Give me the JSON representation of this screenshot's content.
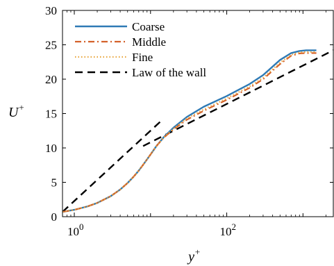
{
  "chart_data": {
    "type": "line",
    "x_scale": "log",
    "xlim": [
      0.7,
      2500
    ],
    "ylim": [
      0,
      30
    ],
    "x_ticks": [
      {
        "value": 1,
        "base": "10",
        "exp": "0"
      },
      {
        "value": 100,
        "base": "10",
        "exp": "2"
      }
    ],
    "y_ticks": [
      0,
      5,
      10,
      15,
      20,
      25,
      30
    ],
    "xlabel": "y",
    "xlabel_sup": "+",
    "ylabel": "U",
    "ylabel_sup": "+",
    "legend_position": "top-left",
    "series": [
      {
        "name": "Coarse",
        "color": "#2e7ab5",
        "style": "solid",
        "x": [
          0.7,
          1,
          1.5,
          2,
          3,
          4,
          5,
          6,
          7,
          8,
          10,
          12,
          15,
          20,
          30,
          50,
          100,
          200,
          300,
          500,
          700,
          900,
          1100,
          1500
        ],
        "y": [
          0.7,
          1.0,
          1.5,
          2.0,
          2.98,
          3.95,
          4.9,
          5.82,
          6.7,
          7.55,
          9.05,
          10.3,
          11.6,
          12.95,
          14.5,
          16.0,
          17.55,
          19.3,
          20.6,
          22.8,
          23.8,
          24.1,
          24.2,
          24.2
        ]
      },
      {
        "name": "Middle",
        "color": "#d4612a",
        "style": "dashdot",
        "x": [
          0.7,
          1,
          1.5,
          2,
          3,
          4,
          5,
          6,
          7,
          8,
          10,
          12,
          15,
          20,
          30,
          50,
          100,
          200,
          300,
          500,
          700,
          900,
          1100,
          1500
        ],
        "y": [
          0.7,
          1.0,
          1.5,
          2.0,
          2.98,
          3.95,
          4.9,
          5.82,
          6.7,
          7.55,
          9.05,
          10.3,
          11.5,
          12.7,
          14.1,
          15.4,
          17.0,
          18.75,
          20.0,
          22.2,
          23.4,
          23.75,
          23.8,
          23.8
        ]
      },
      {
        "name": "Fine",
        "color": "#e8a63e",
        "style": "dotted",
        "x": [
          0.7,
          1,
          1.5,
          2,
          3,
          4,
          5,
          6,
          7,
          8,
          10,
          12,
          15,
          20,
          30,
          50,
          100,
          200,
          300,
          500,
          700,
          900,
          1100,
          1500
        ],
        "y": [
          0.7,
          1.0,
          1.5,
          2.0,
          2.98,
          3.95,
          4.9,
          5.82,
          6.7,
          7.55,
          9.05,
          10.3,
          11.55,
          12.8,
          14.3,
          15.6,
          17.2,
          18.95,
          20.2,
          22.4,
          23.55,
          23.9,
          23.95,
          23.95
        ]
      },
      {
        "name": "Law of the wall",
        "color": "#000000",
        "style": "dashed",
        "segments": [
          {
            "x": [
              0.7,
              14
            ],
            "y": [
              0.7,
              14
            ]
          },
          {
            "x": [
              8,
              2500
            ],
            "y": [
              10.27,
              24.2
            ]
          }
        ]
      }
    ]
  }
}
